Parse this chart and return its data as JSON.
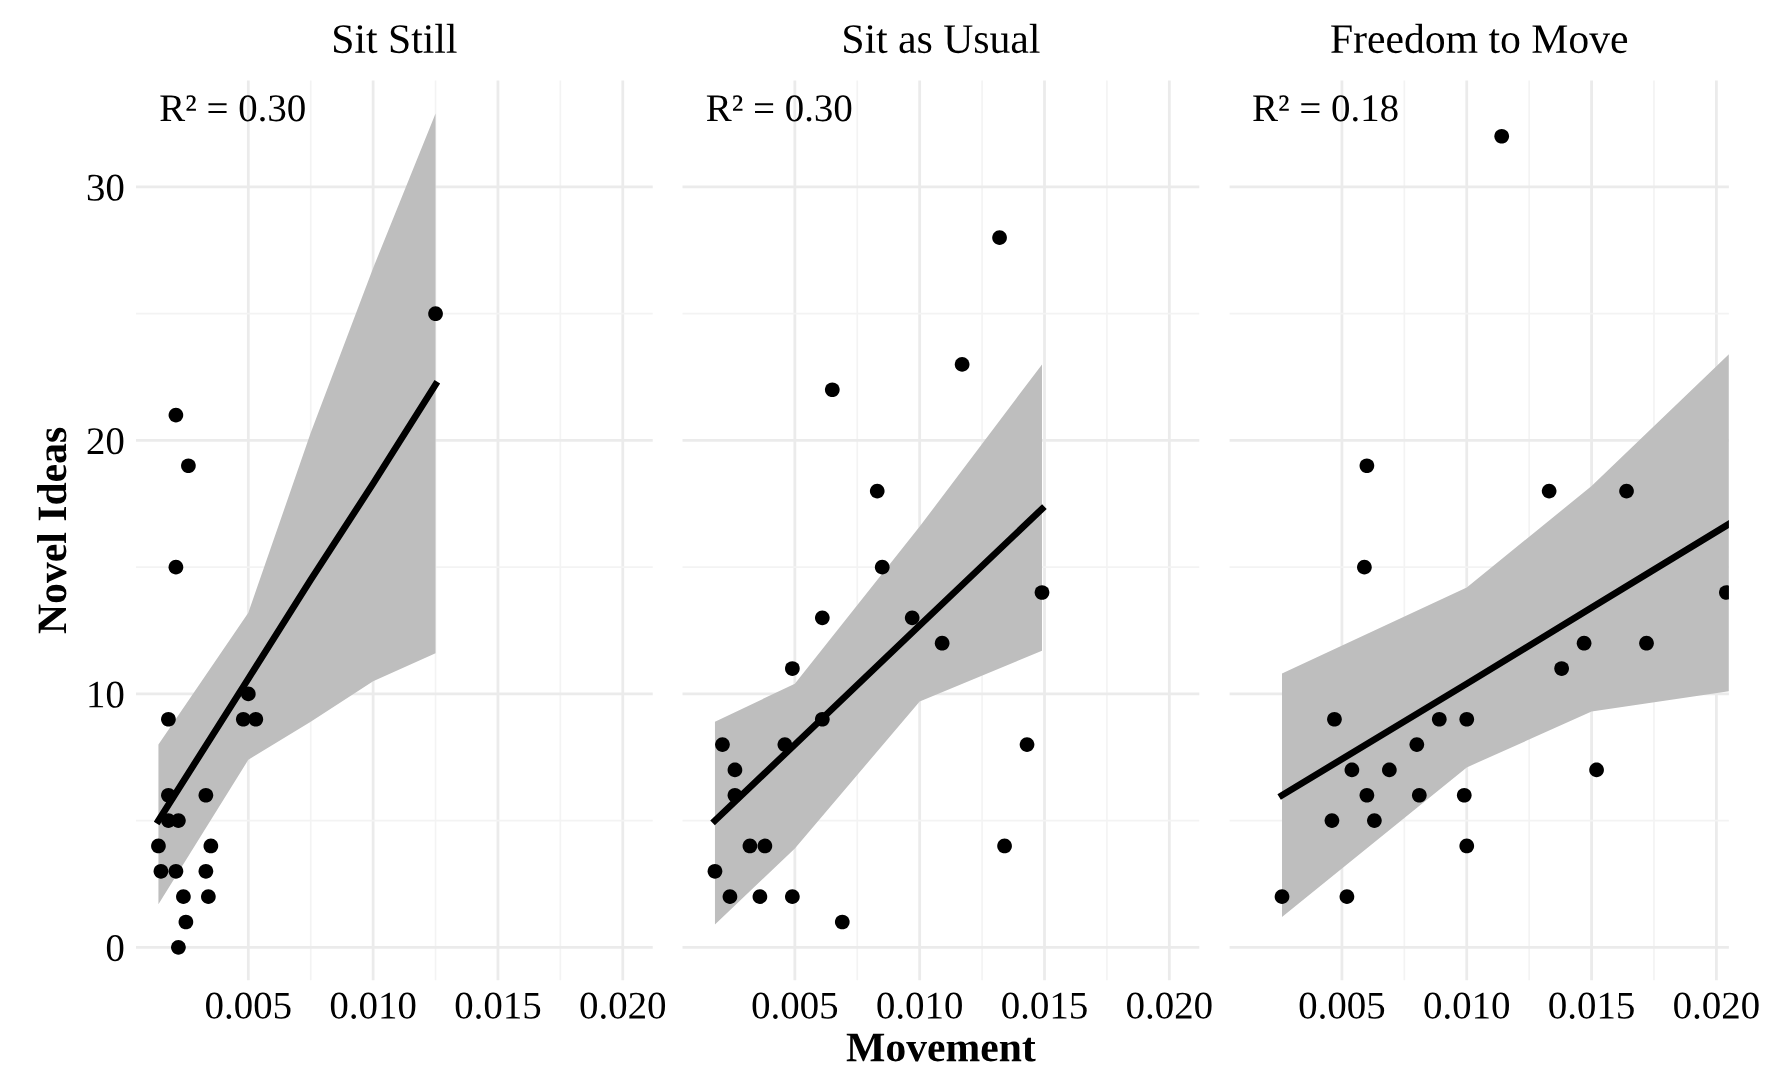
{
  "chart_data": [
    {
      "type": "scatter",
      "title": "Sit Still",
      "ylabel": "Novel Ideas",
      "annotations": [
        "R² = 0.30"
      ],
      "xlim": [
        0.0005,
        0.0212
      ],
      "ylim": [
        -1.3,
        34.2
      ],
      "xticks": [
        {
          "value": 0.005,
          "label": "0.005"
        },
        {
          "value": 0.01,
          "label": "0.010"
        },
        {
          "value": 0.015,
          "label": "0.015"
        },
        {
          "value": 0.02,
          "label": "0.020"
        }
      ],
      "yticks": [
        0,
        10,
        20,
        30
      ],
      "grid": true,
      "series": [
        {
          "color": "#000000",
          "x": [
            0.0125,
            0.0021,
            0.0026,
            0.0021,
            0.0018,
            0.005,
            0.0048,
            0.0053,
            0.0018,
            0.0033,
            0.0018,
            0.0022,
            0.0014,
            0.0035,
            0.0015,
            0.0021,
            0.0033,
            0.0024,
            0.0034,
            0.0025,
            0.0022
          ],
          "values": [
            25,
            21,
            19,
            15,
            9,
            10,
            9,
            9,
            6,
            6,
            5,
            5,
            4,
            4,
            3,
            3,
            3,
            2,
            2,
            1,
            0
          ]
        },
        {
          "type": "line",
          "color": "#000000",
          "x": [
            0.0014,
            0.005,
            0.0075,
            0.01,
            0.0125
          ],
          "values": [
            5.0,
            10.6,
            14.5,
            18.3,
            22.2
          ],
          "lower": [
            1.7,
            7.4,
            8.9,
            10.5,
            11.6
          ],
          "upper": [
            8.0,
            13.2,
            20.3,
            26.8,
            32.9
          ]
        }
      ]
    },
    {
      "type": "scatter",
      "title": "Sit as Usual",
      "xlabel": "Movement",
      "annotations": [
        "R² = 0.30"
      ],
      "xlim": [
        0.0005,
        0.0212
      ],
      "ylim": [
        -1.3,
        34.2
      ],
      "xticks": [
        {
          "value": 0.005,
          "label": "0.005"
        },
        {
          "value": 0.01,
          "label": "0.010"
        },
        {
          "value": 0.015,
          "label": "0.015"
        },
        {
          "value": 0.02,
          "label": "0.020"
        }
      ],
      "yticks": [
        0,
        10,
        20,
        30
      ],
      "grid": true,
      "tick_labels": "x",
      "series": [
        {
          "color": "#000000",
          "x": [
            0.0132,
            0.0117,
            0.0065,
            0.0083,
            0.0085,
            0.0149,
            0.0061,
            0.0097,
            0.0109,
            0.0049,
            0.0061,
            0.0021,
            0.0046,
            0.0143,
            0.0026,
            0.0026,
            0.0032,
            0.0038,
            0.0134,
            0.0018,
            0.0024,
            0.0036,
            0.0049,
            0.0069
          ],
          "values": [
            28,
            23,
            22,
            18,
            15,
            14,
            13,
            13,
            12,
            11,
            9,
            8,
            8,
            8,
            7,
            6,
            4,
            4,
            4,
            3,
            2,
            2,
            2,
            1
          ]
        },
        {
          "type": "line",
          "color": "#000000",
          "x": [
            0.0018,
            0.005,
            0.01,
            0.0149
          ],
          "values": [
            5.0,
            8.0,
            12.7,
            17.3
          ],
          "lower": [
            0.9,
            3.9,
            9.7,
            11.7
          ],
          "upper": [
            8.9,
            10.4,
            16.6,
            23.0
          ]
        }
      ]
    },
    {
      "type": "scatter",
      "title": "Freedom to Move",
      "annotations": [
        "R² = 0.18"
      ],
      "xlim": [
        0.0005,
        0.0205
      ],
      "ylim": [
        -1.3,
        34.2
      ],
      "xticks": [
        {
          "value": 0.005,
          "label": "0.005"
        },
        {
          "value": 0.01,
          "label": "0.010"
        },
        {
          "value": 0.015,
          "label": "0.015"
        },
        {
          "value": 0.02,
          "label": "0.020"
        }
      ],
      "yticks": [
        0,
        10,
        20,
        30
      ],
      "grid": true,
      "tick_labels": "x",
      "series": [
        {
          "color": "#000000",
          "x": [
            0.0114,
            0.006,
            0.0133,
            0.0164,
            0.0059,
            0.0204,
            0.0147,
            0.0172,
            0.0138,
            0.0047,
            0.0089,
            0.01,
            0.008,
            0.0054,
            0.0069,
            0.0152,
            0.006,
            0.0081,
            0.0099,
            0.0046,
            0.0063,
            0.01,
            0.0026,
            0.0052
          ],
          "values": [
            32,
            19,
            18,
            18,
            15,
            14,
            12,
            12,
            11,
            9,
            9,
            9,
            8,
            7,
            7,
            7,
            6,
            6,
            6,
            5,
            5,
            4,
            2,
            2
          ]
        },
        {
          "type": "line",
          "color": "#000000",
          "x": [
            0.0026,
            0.01,
            0.015,
            0.0205
          ],
          "values": [
            6.0,
            10.4,
            13.4,
            16.7
          ],
          "lower": [
            1.2,
            7.1,
            9.3,
            10.1
          ],
          "upper": [
            10.8,
            14.2,
            18.2,
            23.4
          ]
        }
      ]
    }
  ]
}
